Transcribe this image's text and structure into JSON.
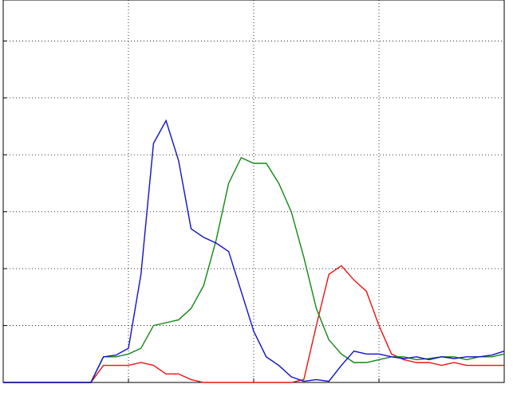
{
  "chart_data": {
    "type": "line",
    "x": [
      0,
      0.1,
      0.2,
      0.3,
      0.4,
      0.5,
      0.6,
      0.7,
      0.8,
      0.9,
      1,
      1.1,
      1.2,
      1.3,
      1.4,
      1.5,
      1.6,
      1.7,
      1.8,
      1.9,
      2,
      2.1,
      2.2,
      2.3,
      2.4,
      2.5,
      2.6,
      2.7,
      2.8,
      2.9,
      3,
      3.1,
      3.2,
      3.3,
      3.4,
      3.5,
      3.6,
      3.7,
      3.8,
      3.9,
      4
    ],
    "series": [
      {
        "color": "#ee1111",
        "values": [
          0,
          0,
          0,
          0,
          0,
          0,
          0,
          0,
          0.3,
          0.3,
          0.3,
          0.35,
          0.3,
          0.15,
          0.15,
          0.05,
          0,
          0,
          0,
          0,
          0,
          0,
          0,
          0,
          0.05,
          1.0,
          1.9,
          2.05,
          1.8,
          1.6,
          1.0,
          0.5,
          0.4,
          0.35,
          0.35,
          0.3,
          0.35,
          0.3,
          0.3,
          0.3,
          0.3
        ]
      },
      {
        "color": "#118811",
        "values": [
          0,
          0,
          0,
          0,
          0,
          0,
          0,
          0,
          0.45,
          0.45,
          0.5,
          0.6,
          1.0,
          1.05,
          1.1,
          1.3,
          1.7,
          2.5,
          3.5,
          3.95,
          3.85,
          3.85,
          3.5,
          3.0,
          2.2,
          1.3,
          0.75,
          0.5,
          0.35,
          0.35,
          0.4,
          0.45,
          0.45,
          0.4,
          0.42,
          0.45,
          0.45,
          0.4,
          0.45,
          0.45,
          0.5
        ]
      },
      {
        "color": "#1111cc",
        "values": [
          0,
          0,
          0,
          0,
          0,
          0,
          0,
          0,
          0.45,
          0.48,
          0.6,
          1.9,
          4.2,
          4.6,
          3.9,
          2.7,
          2.55,
          2.45,
          2.3,
          1.6,
          0.9,
          0.45,
          0.3,
          0.1,
          0.02,
          0.05,
          0.02,
          0.3,
          0.55,
          0.5,
          0.5,
          0.45,
          0.42,
          0.45,
          0.4,
          0.45,
          0.42,
          0.45,
          0.45,
          0.48,
          0.55
        ]
      }
    ],
    "xlim": [
      0,
      4
    ],
    "ylim": [
      0,
      6.72
    ],
    "xticks": [
      1,
      2,
      3
    ],
    "yticks": [
      1,
      2,
      3,
      4,
      5,
      6
    ],
    "grid": true
  }
}
